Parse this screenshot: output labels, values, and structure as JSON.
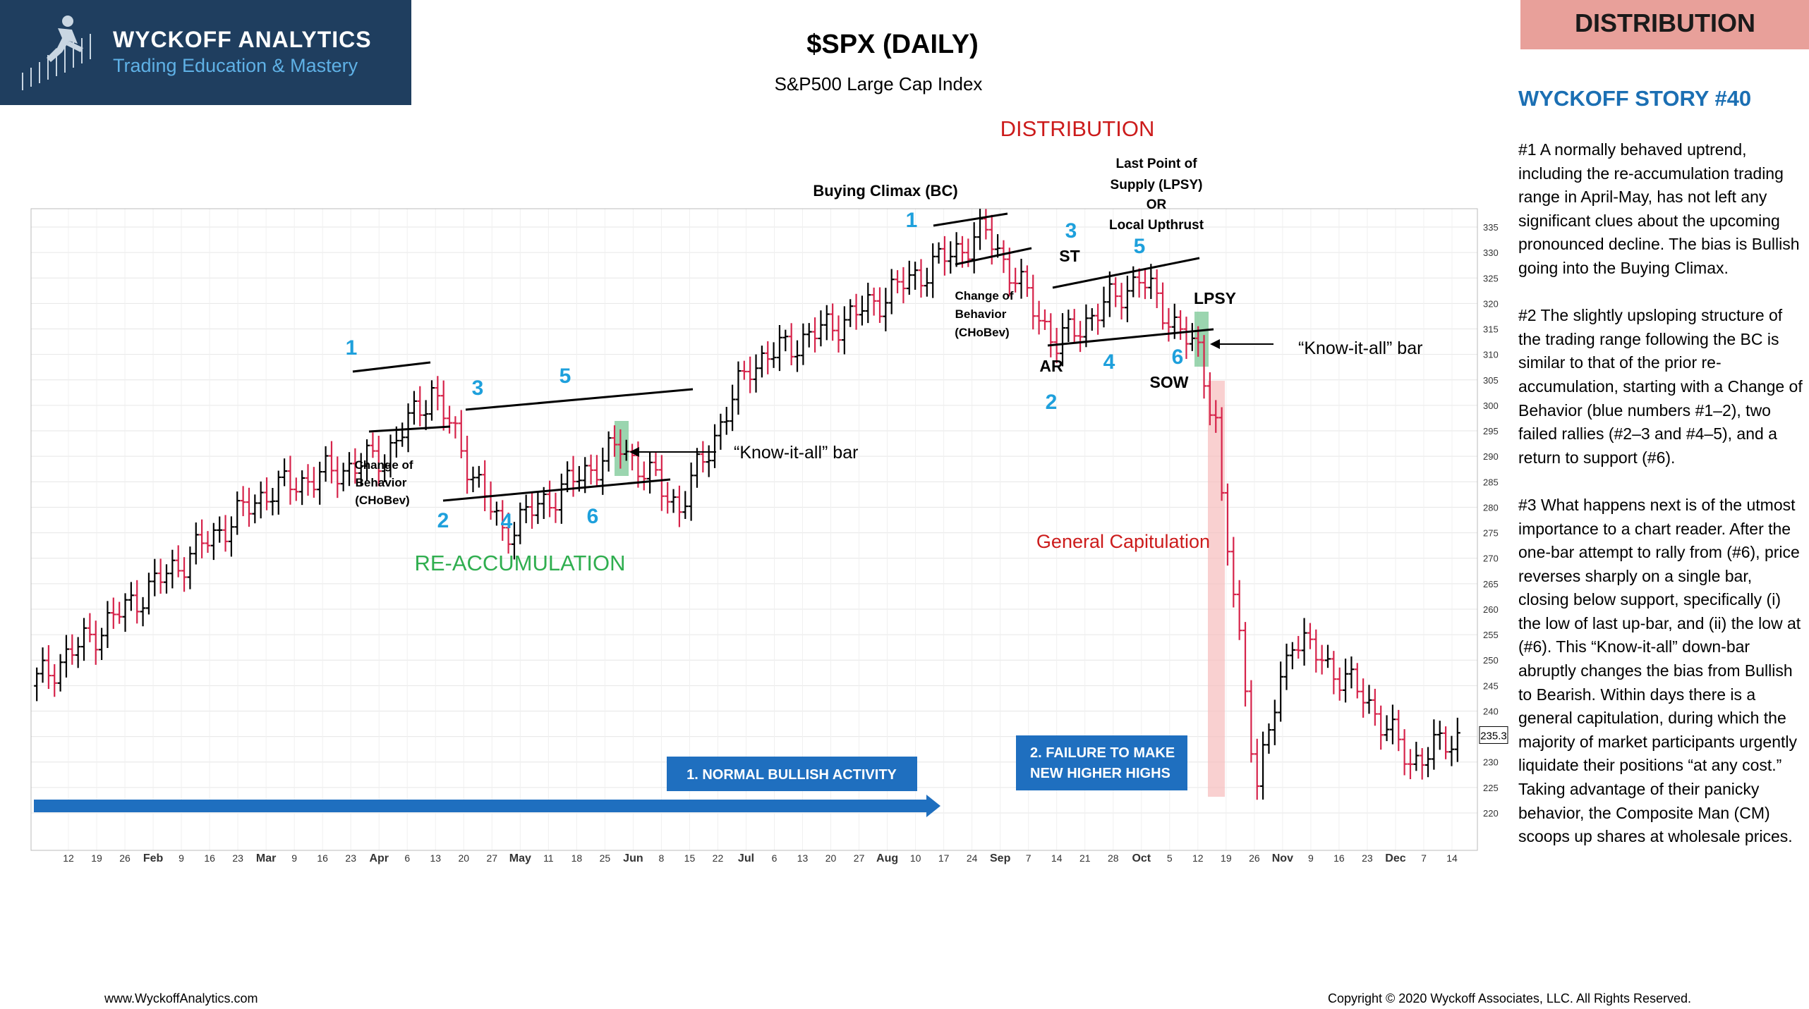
{
  "header": {
    "logo_title": "WYCKOFF ANALYTICS",
    "logo_subtitle": "Trading Education & Mastery",
    "title": "$SPX (DAILY)",
    "subtitle": "S&P500 Large Cap Index",
    "badge": "DISTRIBUTION"
  },
  "story": {
    "title": "WYCKOFF STORY #40",
    "paragraphs": [
      "#1 A normally behaved uptrend, including the re-accumulation trading range in April-May, has not left any significant clues about the upcoming pronounced  decline. The bias is Bullish going into the Buying Climax.",
      "#2 The slightly upsloping structure of the trading range following the BC is similar to that of the prior re-accumulation, starting with a Change of Behavior (blue numbers #1–2), two failed rallies (#2–3 and #4–5), and a return to support (#6).",
      "#3 What happens next is of the utmost importance to a chart reader.  After the one-bar attempt to rally from (#6), price reverses sharply on a single bar, closing below support, specifically (i) the low of last up-bar, and (ii) the low at (#6). This “Know-it-all” down-bar abruptly changes the bias from Bullish to Bearish. Within days there is a general capitulation, during which the majority of market participants urgently liquidate their positions “at any cost.”  Taking advantage of their panicky behavior, the Composite Man (CM) scoops up shares at wholesale prices."
    ]
  },
  "footer": {
    "left": "www.WyckoffAnalytics.com",
    "right": "Copyright © 2020 Wyckoff Associates, LLC. All Rights Reserved."
  },
  "colors": {
    "up_bar": "#000000",
    "down_bar": "#d6234a",
    "label_blue": "#1ea0dc",
    "phase_green": "#2fae4f",
    "phase_red": "#cc1b1b",
    "box_blue": "#1f6fbf",
    "highlight_green": "#6cc28a",
    "capitulation_red": "#f3b3b3"
  },
  "annotations": {
    "reaccumulation": "RE-ACCUMULATION",
    "distribution": "DISTRIBUTION",
    "general_capitulation": "General Capitulation",
    "buying_climax": "Buying Climax (BC)",
    "lpsy_block": [
      "Last Point of",
      "Supply (LPSY)",
      "OR",
      "Local Upthrust"
    ],
    "choch": [
      "Change of",
      "Behavior",
      "(CHoBev)"
    ],
    "choch2": [
      "Change of",
      "Behavior",
      "(CHoBev)"
    ],
    "know_it_all_1": "“Know-it-all” bar",
    "know_it_all_2": "“Know-it-all” bar",
    "box1": "1. NORMAL BULLISH ACTIVITY",
    "box2": [
      "2. FAILURE TO MAKE",
      "NEW HIGHER HIGHS"
    ],
    "st": "ST",
    "ar": "AR",
    "sow": "SOW",
    "lpsy": "LPSY",
    "reacc_numbers": [
      "1",
      "2",
      "3",
      "4",
      "5",
      "6"
    ],
    "dist_numbers": [
      "1",
      "2",
      "3",
      "4",
      "5",
      "6"
    ]
  },
  "chart_data": {
    "type": "ohlc",
    "title": "$SPX (DAILY)",
    "y_ticks": [
      220,
      225,
      230,
      235,
      240,
      245,
      250,
      255,
      260,
      265,
      270,
      275,
      280,
      285,
      290,
      295,
      300,
      305,
      310,
      315,
      320,
      325,
      330,
      335
    ],
    "ylim": [
      217,
      338
    ],
    "last_price_label": "235.3",
    "x_tick_labels": [
      "12",
      "19",
      "26",
      "Feb",
      "9",
      "16",
      "23",
      "Mar",
      "9",
      "16",
      "23",
      "Apr",
      "6",
      "13",
      "20",
      "27",
      "May",
      "11",
      "18",
      "25",
      "Jun",
      "8",
      "15",
      "22",
      "Jul",
      "6",
      "13",
      "20",
      "27",
      "Aug",
      "10",
      "17",
      "24",
      "Sep",
      "7",
      "14",
      "21",
      "28",
      "Oct",
      "5",
      "12",
      "19",
      "26",
      "Nov",
      "9",
      "16",
      "23",
      "Dec",
      "7",
      "14"
    ],
    "segments": [
      {
        "bars": 40,
        "start": 245,
        "end": 283
      },
      {
        "bars": 20,
        "start": 283,
        "end": 290
      },
      {
        "bars": 8,
        "start": 290,
        "end": 303
      },
      {
        "bars": 12,
        "start": 303,
        "end": 275
      },
      {
        "bars": 20,
        "start": 275,
        "end": 292
      },
      {
        "bars": 10,
        "start": 292,
        "end": 280
      },
      {
        "bars": 12,
        "start": 280,
        "end": 308
      },
      {
        "bars": 18,
        "start": 308,
        "end": 318
      },
      {
        "bars": 22,
        "start": 318,
        "end": 334
      },
      {
        "bars": 12,
        "start": 334,
        "end": 312
      },
      {
        "bars": 14,
        "start": 312,
        "end": 325
      },
      {
        "bars": 10,
        "start": 325,
        "end": 310
      },
      {
        "bars": 3,
        "start": 310,
        "end": 297
      },
      {
        "bars": 1,
        "start": 297,
        "end": 281
      },
      {
        "bars": 6,
        "start": 281,
        "end": 226
      },
      {
        "bars": 6,
        "start": 226,
        "end": 255
      },
      {
        "bars": 12,
        "start": 255,
        "end": 243
      },
      {
        "bars": 8,
        "start": 243,
        "end": 230
      },
      {
        "bars": 8,
        "start": 230,
        "end": 235
      }
    ]
  }
}
